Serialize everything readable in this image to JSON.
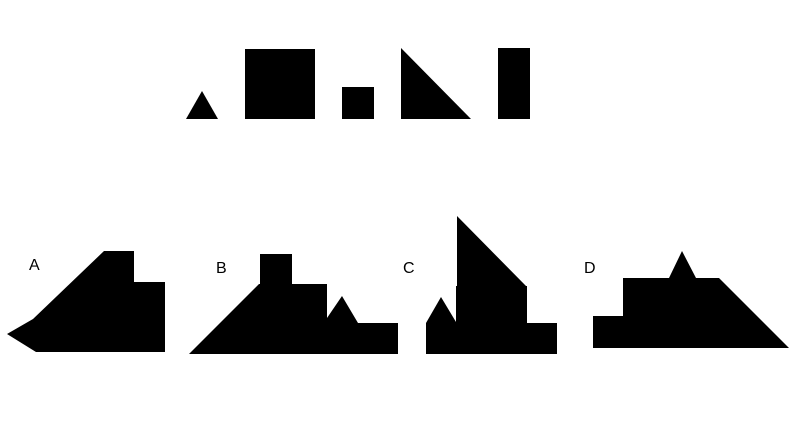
{
  "colors": {
    "shape_fill": "#000000",
    "background": "#ffffff",
    "label": "#000000"
  },
  "pieces": [
    {
      "name": "small-triangle-piece"
    },
    {
      "name": "large-square-piece"
    },
    {
      "name": "small-square-piece"
    },
    {
      "name": "right-triangle-piece"
    },
    {
      "name": "tall-rectangle-piece"
    }
  ],
  "options": [
    {
      "label": "A"
    },
    {
      "label": "B"
    },
    {
      "label": "C"
    },
    {
      "label": "D"
    }
  ]
}
